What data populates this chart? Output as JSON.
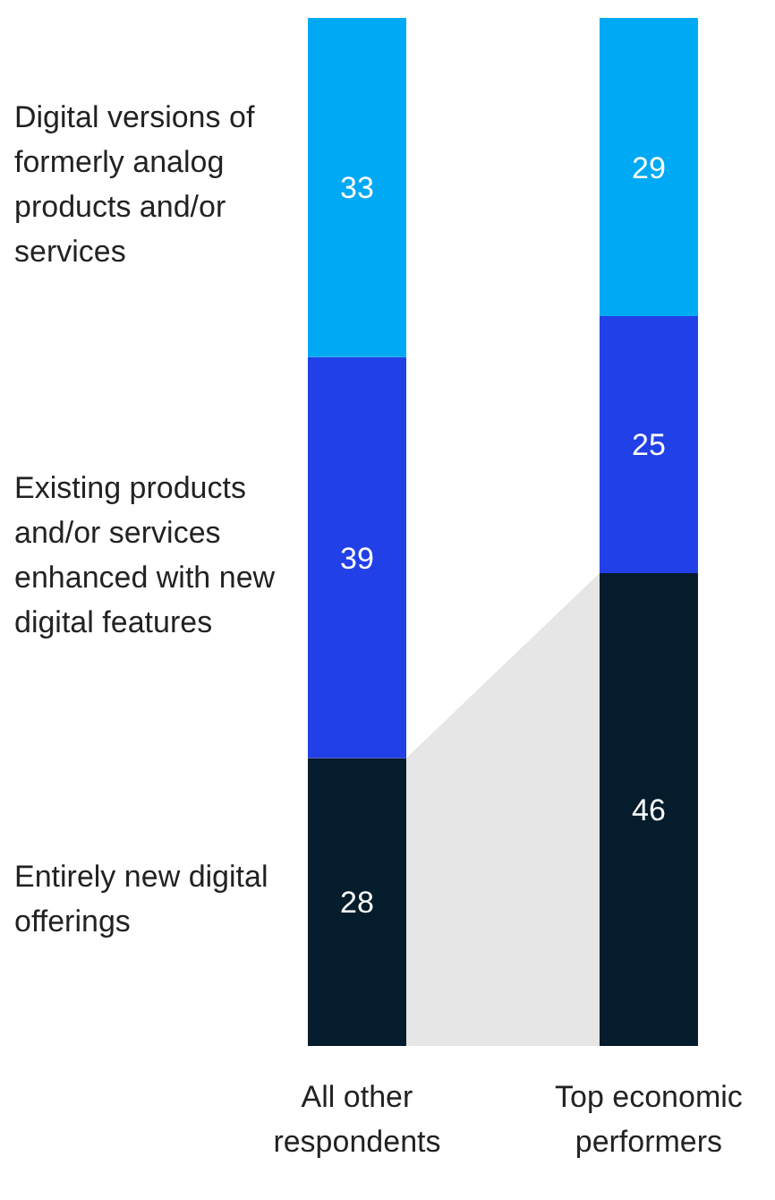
{
  "chart_data": {
    "type": "bar",
    "stacked": true,
    "categories": [
      "All other respondents",
      "Top economic performers"
    ],
    "series": [
      {
        "name": "Entirely new digital offerings",
        "color": "#051c2c",
        "values": [
          28,
          46
        ]
      },
      {
        "name": "Existing products and/or services enhanced with new digital features",
        "color": "#2140e8",
        "values": [
          39,
          25
        ]
      },
      {
        "name": "Digital versions of formerly analog products and/or services",
        "color": "#00a9f4",
        "values": [
          33,
          29
        ]
      }
    ],
    "ylim": [
      0,
      100
    ],
    "tick_labels": "x",
    "data_labels": true,
    "grid": false,
    "legend": false
  }
}
